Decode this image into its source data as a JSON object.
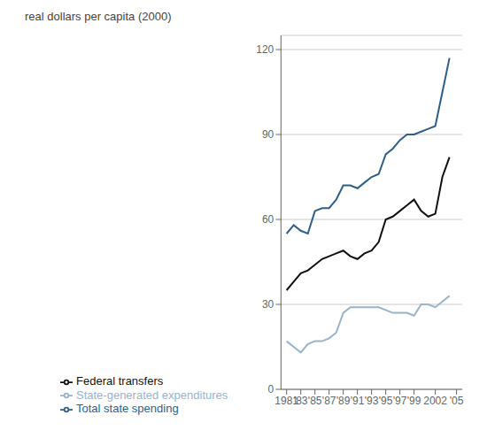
{
  "chart_data": {
    "type": "line",
    "ylabel": "real dollars per capita (2000)",
    "x": [
      1981,
      1982,
      1983,
      1984,
      1985,
      1986,
      1987,
      1988,
      1989,
      1990,
      1991,
      1992,
      1993,
      1994,
      1995,
      1996,
      1997,
      1998,
      1999,
      2000,
      2001,
      2002,
      2003,
      2004
    ],
    "series": [
      {
        "name": "Total state spending",
        "color": "#2e5f8a",
        "values": [
          55,
          58,
          56,
          55,
          63,
          64,
          64,
          67,
          72,
          72,
          71,
          73,
          75,
          76,
          83,
          85,
          88,
          90,
          90,
          91,
          92,
          93,
          105,
          117
        ]
      },
      {
        "name": "Federal transfers",
        "color": "#111111",
        "values": [
          35,
          38,
          41,
          42,
          44,
          46,
          47,
          48,
          49,
          47,
          46,
          48,
          49,
          52,
          60,
          61,
          63,
          65,
          67,
          63,
          61,
          62,
          75,
          82
        ]
      },
      {
        "name": "State-generated expenditures",
        "color": "#9ab3cc",
        "values": [
          17,
          15,
          13,
          16,
          17,
          17,
          18,
          20,
          27,
          29,
          29,
          29,
          29,
          29,
          28,
          27,
          27,
          27,
          26,
          30,
          30,
          29,
          31,
          33
        ]
      }
    ],
    "xlim": [
      1980.2,
      2005.8
    ],
    "xticks": [
      1981,
      {
        "value": 1983,
        "label": "'83"
      },
      {
        "value": 1985,
        "label": "'85"
      },
      {
        "value": 1987,
        "label": "'87"
      },
      {
        "value": 1989,
        "label": "'89"
      },
      {
        "value": 1991,
        "label": "'91"
      },
      {
        "value": 1993,
        "label": "'93"
      },
      {
        "value": 1995,
        "label": "'95"
      },
      {
        "value": 1997,
        "label": "'97"
      },
      {
        "value": 1999,
        "label": "'99"
      },
      2002,
      {
        "value": 2005,
        "label": "'05"
      }
    ],
    "ylim": [
      0,
      125
    ],
    "yticks": [
      0,
      30,
      60,
      90,
      120
    ],
    "grid": true,
    "legend": "bottom"
  }
}
